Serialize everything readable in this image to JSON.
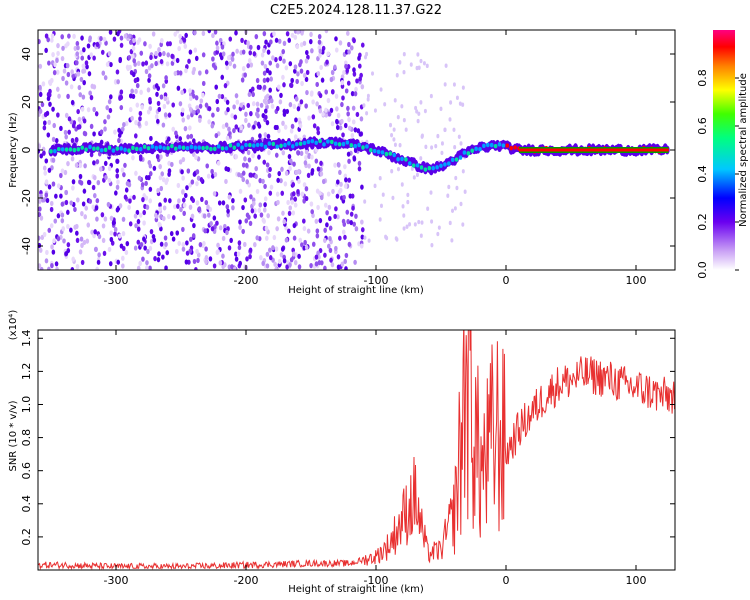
{
  "title": "C2E5.2024.128.11.37.G22",
  "chart_data": [
    {
      "type": "heatmap",
      "xlabel": "Height of straight line (km)",
      "ylabel": "Frequency (Hz)",
      "xlim": [
        -360,
        130
      ],
      "ylim": [
        -50,
        50
      ],
      "x_ticks": [
        -300,
        -200,
        -100,
        0,
        100
      ],
      "y_ticks": [
        -40,
        -20,
        0,
        20,
        40
      ],
      "colorbar": {
        "label": "Normalized spectral amplitude",
        "range": [
          0,
          1
        ],
        "ticks": [
          "0.0",
          "0.2",
          "0.4",
          "0.6",
          "0.8"
        ]
      },
      "signal_trace": [
        {
          "x": -345,
          "y": 0
        },
        {
          "x": -320,
          "y": 1
        },
        {
          "x": -300,
          "y": 0
        },
        {
          "x": -280,
          "y": 1
        },
        {
          "x": -220,
          "y": 1
        },
        {
          "x": -190,
          "y": 2
        },
        {
          "x": -170,
          "y": 2
        },
        {
          "x": -150,
          "y": 3
        },
        {
          "x": -130,
          "y": 3
        },
        {
          "x": -115,
          "y": 2
        },
        {
          "x": -100,
          "y": 0
        },
        {
          "x": -90,
          "y": -2
        },
        {
          "x": -75,
          "y": -5
        },
        {
          "x": -60,
          "y": -8
        },
        {
          "x": -50,
          "y": -7
        },
        {
          "x": -40,
          "y": -4
        },
        {
          "x": -30,
          "y": -1
        },
        {
          "x": -20,
          "y": 1
        },
        {
          "x": -5,
          "y": 2
        },
        {
          "x": 10,
          "y": 0
        },
        {
          "x": 50,
          "y": 0
        },
        {
          "x": 100,
          "y": 0
        },
        {
          "x": 125,
          "y": 0
        }
      ]
    },
    {
      "type": "line",
      "xlabel": "Height of straight line (km)",
      "ylabel": "SNR (10 * v/v)",
      "y_multiplier": "(x10⁴)",
      "xlim": [
        -360,
        130
      ],
      "ylim": [
        0,
        1.45
      ],
      "x_ticks": [
        -300,
        -200,
        -100,
        0,
        100
      ],
      "y_ticks": [
        "0.2",
        "0.4",
        "0.6",
        "0.8",
        "1.0",
        "1.2",
        "1.4"
      ],
      "series": [
        {
          "color": "#e83030",
          "points": [
            [
              -360,
              0.03
            ],
            [
              -340,
              0.03
            ],
            [
              -300,
              0.02
            ],
            [
              -250,
              0.02
            ],
            [
              -200,
              0.03
            ],
            [
              -150,
              0.04
            ],
            [
              -120,
              0.04
            ],
            [
              -100,
              0.08
            ],
            [
              -90,
              0.15
            ],
            [
              -80,
              0.3
            ],
            [
              -70,
              0.45
            ],
            [
              -65,
              0.25
            ],
            [
              -60,
              0.1
            ],
            [
              -50,
              0.12
            ],
            [
              -40,
              0.35
            ],
            [
              -35,
              0.7
            ],
            [
              -30,
              1.3
            ],
            [
              -25,
              0.9
            ],
            [
              -20,
              0.6
            ],
            [
              -15,
              0.65
            ],
            [
              -10,
              0.8
            ],
            [
              -5,
              0.85
            ],
            [
              0,
              0.7
            ],
            [
              10,
              0.85
            ],
            [
              20,
              0.95
            ],
            [
              30,
              1.05
            ],
            [
              40,
              1.12
            ],
            [
              50,
              1.15
            ],
            [
              60,
              1.18
            ],
            [
              70,
              1.17
            ],
            [
              80,
              1.15
            ],
            [
              90,
              1.12
            ],
            [
              100,
              1.1
            ],
            [
              110,
              1.08
            ],
            [
              120,
              1.05
            ],
            [
              130,
              1.05
            ]
          ]
        }
      ]
    }
  ]
}
